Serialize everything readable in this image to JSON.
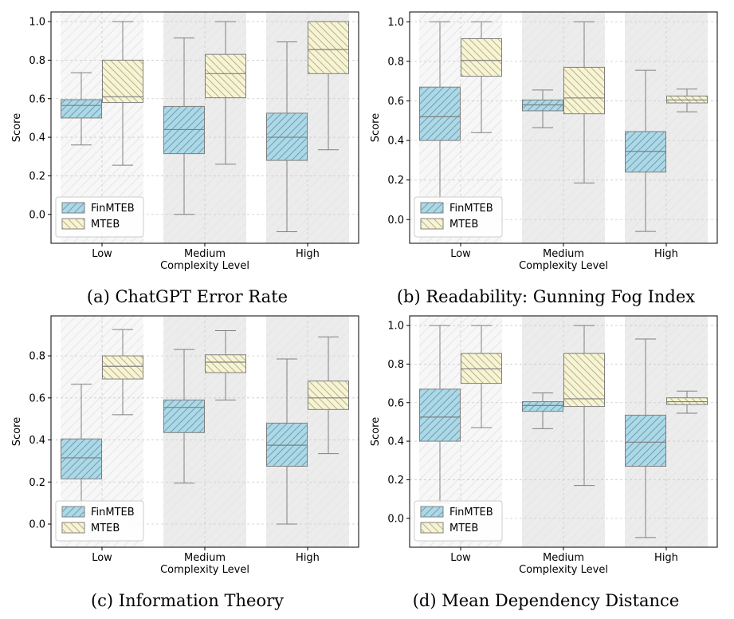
{
  "figure": {
    "colors": {
      "finmteb_fill": "#add8e6",
      "finmteb_hatch": "#6f9fb5",
      "mteb_fill": "#f7f4d5",
      "mteb_hatch": "#b8b287",
      "box_edge": "#808080",
      "band_light": "#f7f7f7",
      "band_dark": "#ececec",
      "grid": "#cccccc"
    }
  },
  "chart_data": [
    {
      "id": "a",
      "type": "box",
      "caption": "(a) ChatGPT Error Rate",
      "xlabel": "Complexity Level",
      "ylabel": "Score",
      "ylim": [
        -0.15,
        1.05
      ],
      "yticks": [
        0.0,
        0.2,
        0.4,
        0.6,
        0.8,
        1.0
      ],
      "ytick_labels": [
        "0.0",
        "0.2",
        "0.4",
        "0.6",
        "0.8",
        "1.0"
      ],
      "categories": [
        "Low",
        "Medium",
        "High"
      ],
      "legend": [
        "FinMTEB",
        "MTEB"
      ],
      "series": [
        {
          "name": "FinMTEB",
          "boxes": [
            {
              "whislo": 0.36,
              "q1": 0.5,
              "med": 0.565,
              "q3": 0.595,
              "whishi": 0.735
            },
            {
              "whislo": 0.0,
              "q1": 0.315,
              "med": 0.44,
              "q3": 0.56,
              "whishi": 0.915
            },
            {
              "whislo": -0.09,
              "q1": 0.28,
              "med": 0.4,
              "q3": 0.525,
              "whishi": 0.895
            }
          ]
        },
        {
          "name": "MTEB",
          "boxes": [
            {
              "whislo": 0.255,
              "q1": 0.58,
              "med": 0.61,
              "q3": 0.8,
              "whishi": 1.0
            },
            {
              "whislo": 0.26,
              "q1": 0.605,
              "med": 0.73,
              "q3": 0.83,
              "whishi": 1.0
            },
            {
              "whislo": 0.335,
              "q1": 0.73,
              "med": 0.855,
              "q3": 1.0,
              "whishi": 1.0
            }
          ]
        }
      ]
    },
    {
      "id": "b",
      "type": "box",
      "caption": "(b) Readability: Gunning Fog Index",
      "xlabel": "Complexity Level",
      "ylabel": "Score",
      "ylim": [
        -0.12,
        1.05
      ],
      "yticks": [
        0.0,
        0.2,
        0.4,
        0.6,
        0.8,
        1.0
      ],
      "ytick_labels": [
        "0.0",
        "0.2",
        "0.4",
        "0.6",
        "0.8",
        "1.0"
      ],
      "categories": [
        "Low",
        "Medium",
        "High"
      ],
      "legend": [
        "FinMTEB",
        "MTEB"
      ],
      "series": [
        {
          "name": "FinMTEB",
          "boxes": [
            {
              "whislo": 0.08,
              "q1": 0.4,
              "med": 0.52,
              "q3": 0.67,
              "whishi": 1.0
            },
            {
              "whislo": 0.465,
              "q1": 0.55,
              "med": 0.58,
              "q3": 0.605,
              "whishi": 0.655
            },
            {
              "whislo": -0.06,
              "q1": 0.24,
              "med": 0.345,
              "q3": 0.445,
              "whishi": 0.755
            }
          ]
        },
        {
          "name": "MTEB",
          "boxes": [
            {
              "whislo": 0.44,
              "q1": 0.725,
              "med": 0.805,
              "q3": 0.915,
              "whishi": 1.0
            },
            {
              "whislo": 0.185,
              "q1": 0.535,
              "med": 0.615,
              "q3": 0.77,
              "whishi": 1.0
            },
            {
              "whislo": 0.545,
              "q1": 0.59,
              "med": 0.605,
              "q3": 0.625,
              "whishi": 0.66
            }
          ]
        }
      ]
    },
    {
      "id": "c",
      "type": "box",
      "caption": "(c) Information Theory",
      "xlabel": "Complexity Level",
      "ylabel": "Score",
      "ylim": [
        -0.11,
        0.99
      ],
      "yticks": [
        0.0,
        0.2,
        0.4,
        0.6,
        0.8
      ],
      "ytick_labels": [
        "0.0",
        "0.2",
        "0.4",
        "0.6",
        "0.8"
      ],
      "categories": [
        "Low",
        "Medium",
        "High"
      ],
      "legend": [
        "FinMTEB",
        "MTEB"
      ],
      "series": [
        {
          "name": "FinMTEB",
          "boxes": [
            {
              "whislo": 0.05,
              "q1": 0.215,
              "med": 0.315,
              "q3": 0.405,
              "whishi": 0.665
            },
            {
              "whislo": 0.195,
              "q1": 0.435,
              "med": 0.555,
              "q3": 0.59,
              "whishi": 0.83
            },
            {
              "whislo": 0.0,
              "q1": 0.275,
              "med": 0.375,
              "q3": 0.48,
              "whishi": 0.785
            }
          ]
        },
        {
          "name": "MTEB",
          "boxes": [
            {
              "whislo": 0.52,
              "q1": 0.69,
              "med": 0.75,
              "q3": 0.8,
              "whishi": 0.925
            },
            {
              "whislo": 0.59,
              "q1": 0.72,
              "med": 0.77,
              "q3": 0.805,
              "whishi": 0.92
            },
            {
              "whislo": 0.335,
              "q1": 0.545,
              "med": 0.6,
              "q3": 0.68,
              "whishi": 0.89
            }
          ]
        }
      ]
    },
    {
      "id": "d",
      "type": "box",
      "caption": "(d) Mean Dependency Distance",
      "xlabel": "Complexity Level",
      "ylabel": "Score",
      "ylim": [
        -0.15,
        1.05
      ],
      "yticks": [
        0.0,
        0.2,
        0.4,
        0.6,
        0.8,
        1.0
      ],
      "ytick_labels": [
        "0.0",
        "0.2",
        "0.4",
        "0.6",
        "0.8",
        "1.0"
      ],
      "categories": [
        "Low",
        "Medium",
        "High"
      ],
      "legend": [
        "FinMTEB",
        "MTEB"
      ],
      "series": [
        {
          "name": "FinMTEB",
          "boxes": [
            {
              "whislo": 0.08,
              "q1": 0.4,
              "med": 0.525,
              "q3": 0.67,
              "whishi": 1.0
            },
            {
              "whislo": 0.465,
              "q1": 0.555,
              "med": 0.585,
              "q3": 0.605,
              "whishi": 0.65
            },
            {
              "whislo": -0.1,
              "q1": 0.27,
              "med": 0.395,
              "q3": 0.535,
              "whishi": 0.93
            }
          ]
        },
        {
          "name": "MTEB",
          "boxes": [
            {
              "whislo": 0.47,
              "q1": 0.7,
              "med": 0.775,
              "q3": 0.855,
              "whishi": 1.0
            },
            {
              "whislo": 0.17,
              "q1": 0.58,
              "med": 0.62,
              "q3": 0.855,
              "whishi": 1.0
            },
            {
              "whislo": 0.545,
              "q1": 0.59,
              "med": 0.605,
              "q3": 0.625,
              "whishi": 0.66
            }
          ]
        }
      ]
    }
  ]
}
